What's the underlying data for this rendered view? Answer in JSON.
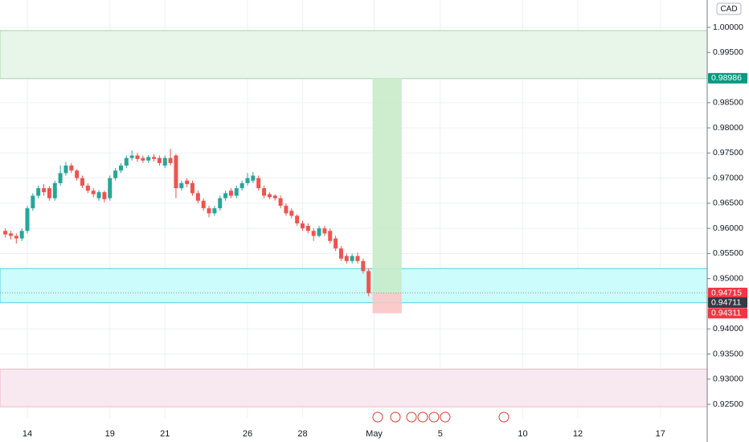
{
  "chart_data": {
    "type": "candlestick",
    "currency": "CAD",
    "categories": [
      null,
      null,
      null,
      null,
      "14",
      null,
      null,
      null,
      null,
      null,
      null,
      null,
      null,
      null,
      null,
      null,
      null,
      null,
      null,
      "19",
      null,
      null,
      null,
      null,
      null,
      null,
      null,
      null,
      null,
      "21",
      null,
      null,
      null,
      null,
      null,
      null,
      null,
      null,
      null,
      null,
      null,
      null,
      null,
      null,
      "26",
      null,
      null,
      null,
      null,
      null,
      null,
      null,
      null,
      null,
      "28",
      null,
      null,
      null,
      null,
      null,
      null,
      null,
      null,
      null,
      null,
      null,
      null,
      "May",
      null,
      null,
      null,
      null,
      null,
      null,
      null,
      null,
      null,
      null,
      null,
      "5",
      null,
      null,
      null,
      null,
      null,
      null,
      null,
      null,
      null,
      null,
      null,
      null,
      null,
      null,
      "10",
      null,
      null,
      null,
      null,
      null,
      null,
      null,
      null,
      null,
      "12",
      null,
      null,
      null,
      null,
      null,
      null,
      null,
      null,
      null,
      null,
      null,
      null,
      null,
      null,
      "17",
      null,
      null,
      null,
      null,
      null,
      null,
      null,
      null
    ],
    "open": [
      0.9595,
      0.959,
      0.9585,
      0.958,
      0.9595,
      0.964,
      0.9665,
      0.968,
      0.968,
      0.966,
      0.969,
      0.971,
      0.9725,
      0.9715,
      0.97,
      0.9685,
      0.9675,
      0.966,
      0.9672,
      0.966,
      0.97,
      0.9715,
      0.9725,
      0.974,
      0.9745,
      0.974,
      0.9735,
      0.9742,
      0.974,
      0.9725,
      0.974,
      0.9745,
      0.968,
      0.9695,
      0.969,
      0.967,
      0.9655,
      0.964,
      0.963,
      0.964,
      0.966,
      0.9675,
      0.9665,
      0.968,
      0.969,
      0.9695,
      0.97,
      0.968,
      0.9668,
      0.9665,
      0.966,
      0.9645,
      0.9635,
      0.9625,
      0.961,
      0.9605,
      0.9595,
      0.9585,
      0.96,
      0.9595,
      0.958,
      0.956,
      0.9545,
      0.9535,
      0.9545,
      0.9535,
      0.9515,
      null,
      null,
      null,
      null,
      null,
      null,
      null,
      null,
      null,
      null,
      null,
      null,
      null,
      null,
      null,
      null,
      null,
      null,
      null,
      null,
      null,
      null,
      null,
      null,
      null,
      null,
      null,
      null,
      null,
      null,
      null,
      null,
      null,
      null,
      null,
      null,
      null,
      null,
      null,
      null,
      null,
      null,
      null,
      null,
      null,
      null,
      null,
      null,
      null,
      null,
      null,
      null,
      null,
      null,
      null,
      null,
      null,
      null,
      null,
      null,
      null
    ],
    "high": [
      0.96,
      0.9595,
      0.959,
      0.96,
      0.9645,
      0.967,
      0.9685,
      0.9688,
      0.9684,
      0.9695,
      0.9725,
      0.9732,
      0.973,
      0.9718,
      0.9705,
      0.969,
      0.968,
      0.9676,
      0.9675,
      0.9705,
      0.972,
      0.973,
      0.9745,
      0.9755,
      0.975,
      0.9745,
      0.9746,
      0.9748,
      0.9745,
      0.9745,
      0.9758,
      0.9748,
      0.9695,
      0.97,
      0.9695,
      0.9675,
      0.966,
      0.9645,
      0.9645,
      0.9665,
      0.9675,
      0.968,
      0.9685,
      0.9695,
      0.971,
      0.9712,
      0.9705,
      0.9685,
      0.9672,
      0.9668,
      0.9665,
      0.965,
      0.964,
      0.9628,
      0.9615,
      0.961,
      0.96,
      0.9605,
      0.9605,
      0.96,
      0.9585,
      0.9565,
      0.955,
      0.955,
      0.9552,
      0.954,
      0.952,
      null,
      null,
      null,
      null,
      null,
      null,
      null,
      null,
      null,
      null,
      null,
      null,
      null,
      null,
      null,
      null,
      null,
      null,
      null,
      null,
      null,
      null,
      null,
      null,
      null,
      null,
      null,
      null,
      null,
      null,
      null,
      null,
      null,
      null,
      null,
      null,
      null,
      null,
      null,
      null,
      null,
      null,
      null,
      null,
      null,
      null,
      null,
      null,
      null,
      null,
      null,
      null,
      null,
      null,
      null,
      null,
      null,
      null,
      null,
      null,
      null
    ],
    "low": [
      0.9582,
      0.9578,
      0.957,
      0.9575,
      0.959,
      0.9635,
      0.966,
      0.9665,
      0.9655,
      0.9655,
      0.9685,
      0.9705,
      0.971,
      0.9695,
      0.968,
      0.967,
      0.9662,
      0.9655,
      0.9652,
      0.9655,
      0.9695,
      0.971,
      0.972,
      0.9735,
      0.9732,
      0.973,
      0.973,
      0.9733,
      0.9725,
      0.972,
      0.9725,
      0.966,
      0.9675,
      0.9682,
      0.9665,
      0.965,
      0.9635,
      0.9622,
      0.9625,
      0.9635,
      0.9655,
      0.966,
      0.966,
      0.9675,
      0.9685,
      0.969,
      0.9675,
      0.966,
      0.9658,
      0.9655,
      0.964,
      0.9625,
      0.962,
      0.9605,
      0.9595,
      0.959,
      0.9575,
      0.9582,
      0.9585,
      0.957,
      0.9555,
      0.9535,
      0.953,
      0.953,
      0.953,
      0.951,
      0.9465,
      null,
      null,
      null,
      null,
      null,
      null,
      null,
      null,
      null,
      null,
      null,
      null,
      null,
      null,
      null,
      null,
      null,
      null,
      null,
      null,
      null,
      null,
      null,
      null,
      null,
      null,
      null,
      null,
      null,
      null,
      null,
      null,
      null,
      null,
      null,
      null,
      null,
      null,
      null,
      null,
      null,
      null,
      null,
      null,
      null,
      null,
      null,
      null,
      null,
      null,
      null,
      null,
      null,
      null,
      null,
      null,
      null,
      null,
      null,
      null,
      null
    ],
    "close": [
      0.9588,
      0.9585,
      0.958,
      0.9595,
      0.964,
      0.9665,
      0.968,
      0.9672,
      0.966,
      0.969,
      0.971,
      0.9725,
      0.9715,
      0.97,
      0.9685,
      0.9675,
      0.9668,
      0.9672,
      0.9658,
      0.97,
      0.9715,
      0.9725,
      0.974,
      0.9745,
      0.9738,
      0.9735,
      0.9742,
      0.9738,
      0.973,
      0.974,
      0.973,
      0.968,
      0.969,
      0.9688,
      0.967,
      0.9655,
      0.964,
      0.963,
      0.964,
      0.966,
      0.967,
      0.9665,
      0.968,
      0.969,
      0.97,
      0.9705,
      0.968,
      0.9665,
      0.9662,
      0.966,
      0.9645,
      0.963,
      0.9625,
      0.961,
      0.96,
      0.9595,
      0.9585,
      0.96,
      0.959,
      0.9575,
      0.956,
      0.954,
      0.9535,
      0.9545,
      0.9535,
      0.9515,
      0.9471,
      null,
      null,
      null,
      null,
      null,
      null,
      null,
      null,
      null,
      null,
      null,
      null,
      null,
      null,
      null,
      null,
      null,
      null,
      null,
      null,
      null,
      null,
      null,
      null,
      null,
      null,
      null,
      null,
      null,
      null,
      null,
      null,
      null,
      null,
      null,
      null,
      null,
      null,
      null,
      null,
      null,
      null,
      null,
      null,
      null,
      null,
      null,
      null,
      null,
      null,
      null,
      null,
      null,
      null,
      null,
      null,
      null,
      null,
      null,
      null,
      null
    ],
    "up_color": "#26a69a",
    "down_color": "#ef5350",
    "ylim": [
      0.92229,
      1.00544
    ],
    "yticks": [
      {
        "value": 1.0,
        "label": "1.00000"
      },
      {
        "value": 0.995,
        "label": "0.99500"
      },
      {
        "value": 0.985,
        "label": "0.98500"
      },
      {
        "value": 0.98,
        "label": "0.98000"
      },
      {
        "value": 0.975,
        "label": "0.97500"
      },
      {
        "value": 0.97,
        "label": "0.97000"
      },
      {
        "value": 0.965,
        "label": "0.96500"
      },
      {
        "value": 0.96,
        "label": "0.96000"
      },
      {
        "value": 0.955,
        "label": "0.95500"
      },
      {
        "value": 0.95,
        "label": "0.95000"
      },
      {
        "value": 0.94,
        "label": "0.94000"
      },
      {
        "value": 0.935,
        "label": "0.93500"
      },
      {
        "value": 0.93,
        "label": "0.93000"
      },
      {
        "value": 0.925,
        "label": "0.92500"
      }
    ],
    "grid": true,
    "zones": [
      {
        "low": 0.9898,
        "high": 0.99935,
        "fill": "#e8f5e9",
        "stroke": "#a5d6a7"
      },
      {
        "low": 0.9452,
        "high": 0.952,
        "fill": "#ccfcfc",
        "stroke": "#4dd0e1"
      },
      {
        "low": 0.9245,
        "high": 0.932,
        "fill": "#f8e8f0",
        "stroke": "#f4b6c2"
      }
    ],
    "position": {
      "entry": 0.94715,
      "target": 0.98986,
      "stop": 0.94311,
      "profit_color": "#c8ebc9",
      "loss_color": "#fbc5c5"
    },
    "markers": [
      {
        "value": 0.98986,
        "label": "0.98986",
        "color": "#089981"
      },
      {
        "value": 0.94715,
        "label": "0.94715",
        "color": "#f23645"
      },
      {
        "value": 0.94711,
        "label": "0.94711",
        "color": "#363a45"
      },
      {
        "value": 0.94311,
        "label": "0.94311",
        "color": "#f23645"
      }
    ]
  }
}
